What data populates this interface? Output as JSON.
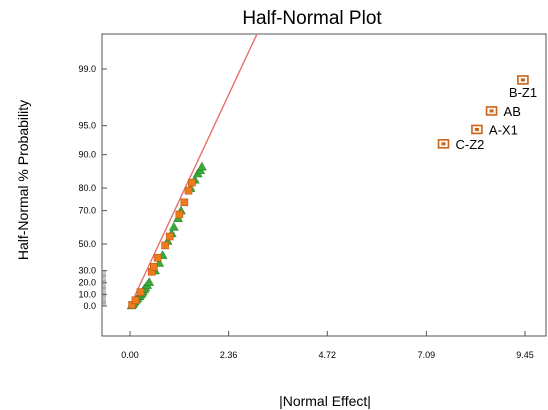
{
  "chart_data": {
    "type": "scatter",
    "title": "Half-Normal Plot",
    "xlabel": "|Normal Effect|",
    "ylabel": "Half-Normal % Probability",
    "x_ticks": [
      0.0,
      2.36,
      4.72,
      7.09,
      9.45
    ],
    "x_tick_labels": [
      "0.00",
      "2.36",
      "4.72",
      "7.09",
      "9.45"
    ],
    "xlim": [
      0.0,
      9.45
    ],
    "y_scale": "half-normal probability",
    "y_tick_labels": [
      "0.0",
      "10.0",
      "20.0",
      "30.0",
      "50.0",
      "70.0",
      "80.0",
      "90.0",
      "95.0",
      "99.0"
    ],
    "grid": false,
    "legend": "none",
    "fit_line": {
      "color": "#e8706a",
      "from": [
        0.0,
        0.0
      ],
      "to": [
        3.05,
        99.7
      ]
    },
    "significant_effects": [
      {
        "label": "B-Z1",
        "x": 9.4,
        "y": 98.6
      },
      {
        "label": "AB",
        "x": 8.65,
        "y": 96.6
      },
      {
        "label": "A-X1",
        "x": 8.3,
        "y": 94.5
      },
      {
        "label": "C-Z2",
        "x": 7.5,
        "y": 92.2
      }
    ],
    "significant_marker": {
      "shape": "square",
      "color": "#c8641e"
    },
    "error_marker": {
      "shape": "triangle",
      "color": "#3aa93a"
    },
    "factor_marker": {
      "shape": "square",
      "color": "#f07a1e"
    },
    "error_points": [
      {
        "x": 0.04,
        "y": 0.5
      },
      {
        "x": 0.06,
        "y": 1.5
      },
      {
        "x": 0.09,
        "y": 2.8
      },
      {
        "x": 0.11,
        "y": 4.0
      },
      {
        "x": 0.15,
        "y": 5.5
      },
      {
        "x": 0.19,
        "y": 7.0
      },
      {
        "x": 0.23,
        "y": 8.5
      },
      {
        "x": 0.26,
        "y": 10.0
      },
      {
        "x": 0.29,
        "y": 11.5
      },
      {
        "x": 0.31,
        "y": 13.0
      },
      {
        "x": 0.34,
        "y": 14.5
      },
      {
        "x": 0.37,
        "y": 16.0
      },
      {
        "x": 0.41,
        "y": 18.0
      },
      {
        "x": 0.46,
        "y": 20.5
      },
      {
        "x": 0.6,
        "y": 30.0
      },
      {
        "x": 0.7,
        "y": 36.0
      },
      {
        "x": 0.78,
        "y": 42.0
      },
      {
        "x": 0.9,
        "y": 52.0
      },
      {
        "x": 1.0,
        "y": 57.0
      },
      {
        "x": 1.05,
        "y": 61.0
      },
      {
        "x": 1.15,
        "y": 66.0
      },
      {
        "x": 1.22,
        "y": 70.0
      },
      {
        "x": 1.45,
        "y": 80.0
      },
      {
        "x": 1.55,
        "y": 83.0
      },
      {
        "x": 1.62,
        "y": 85.0
      },
      {
        "x": 1.68,
        "y": 86.0
      },
      {
        "x": 1.72,
        "y": 87.0
      }
    ],
    "factor_points": [
      {
        "x": 0.05,
        "y": 1.0
      },
      {
        "x": 0.13,
        "y": 5.0
      },
      {
        "x": 0.25,
        "y": 12.0
      },
      {
        "x": 0.52,
        "y": 29.0
      },
      {
        "x": 0.57,
        "y": 33.0
      },
      {
        "x": 0.66,
        "y": 40.0
      },
      {
        "x": 0.84,
        "y": 49.0
      },
      {
        "x": 0.95,
        "y": 55.0
      },
      {
        "x": 1.18,
        "y": 68.0
      },
      {
        "x": 1.3,
        "y": 74.0
      },
      {
        "x": 1.4,
        "y": 79.0
      },
      {
        "x": 1.48,
        "y": 82.0
      }
    ]
  }
}
